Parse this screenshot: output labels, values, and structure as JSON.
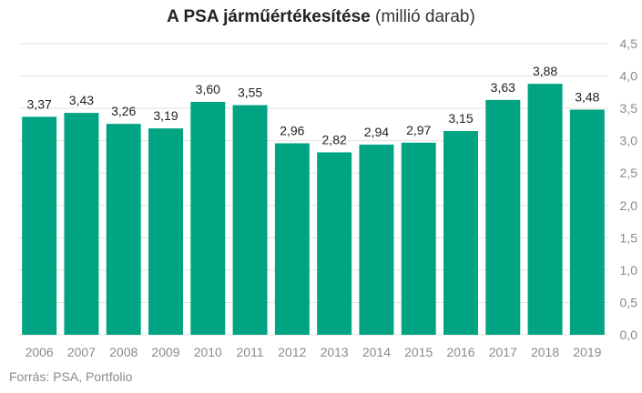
{
  "title_bold": "A PSA járműértékesítése",
  "title_rest": "(millió darab)",
  "source": "Forrás: PSA, Portfolio",
  "colors": {
    "bar": "#00a482",
    "grid": "#e3e3e3",
    "tick": "#8a8a8a",
    "label": "#222222"
  },
  "chart_data": {
    "type": "bar",
    "categories": [
      "2006",
      "2007",
      "2008",
      "2009",
      "2010",
      "2011",
      "2012",
      "2013",
      "2014",
      "2015",
      "2016",
      "2017",
      "2018",
      "2019"
    ],
    "values": [
      3.37,
      3.43,
      3.26,
      3.19,
      3.6,
      3.55,
      2.96,
      2.82,
      2.94,
      2.97,
      3.15,
      3.63,
      3.88,
      3.48
    ],
    "value_labels": [
      "3,37",
      "3,43",
      "3,26",
      "3,19",
      "3,60",
      "3,55",
      "2,96",
      "2,82",
      "2,94",
      "2,97",
      "3,15",
      "3,63",
      "3,88",
      "3,48"
    ],
    "yticks": [
      0,
      0.5,
      1,
      1.5,
      2,
      2.5,
      3,
      3.5,
      4,
      4.5
    ],
    "ytick_labels": [
      "0,0",
      "0,5",
      "1,0",
      "1,5",
      "2,0",
      "2,5",
      "3,0",
      "3,5",
      "4,0",
      "4,5"
    ],
    "ylim": [
      0,
      4.5
    ],
    "yaxis_position": "right",
    "grid": true
  }
}
